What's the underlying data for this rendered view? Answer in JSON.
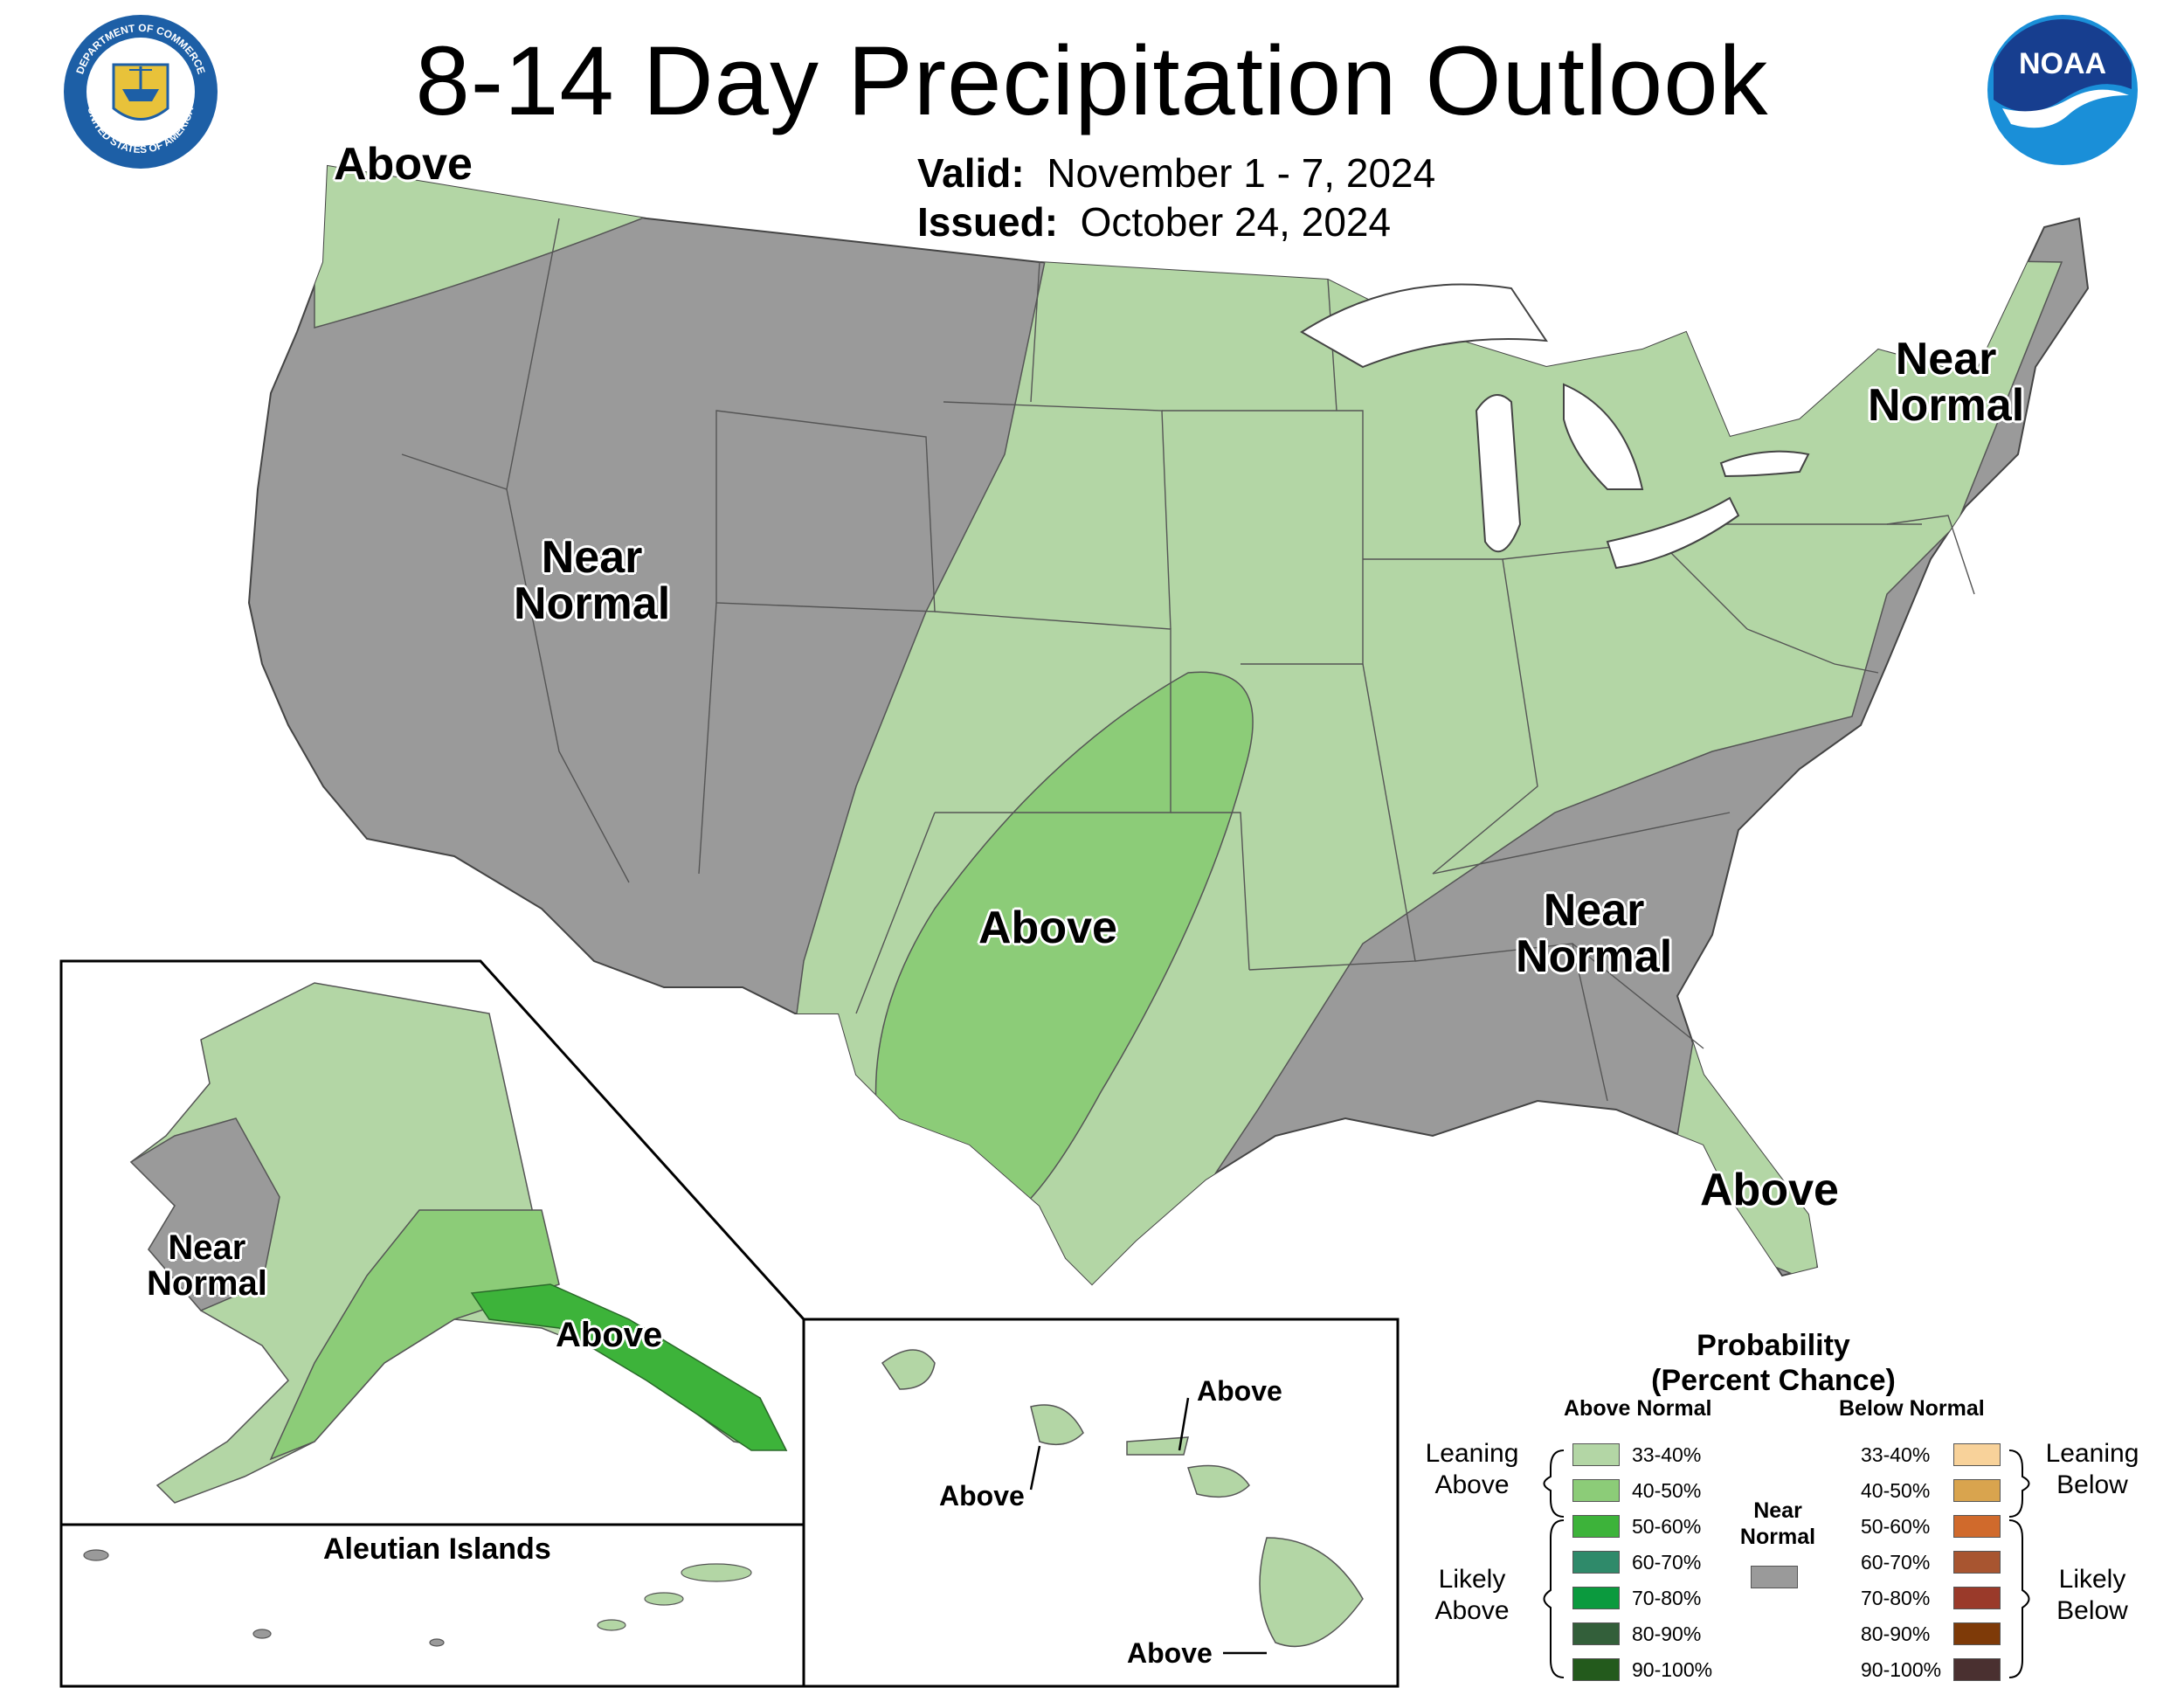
{
  "title": "8-14 Day Precipitation Outlook",
  "valid_label": "Valid:",
  "valid_value": "November 1 - 7, 2024",
  "issued_label": "Issued:",
  "issued_value": "October 24, 2024",
  "logos": {
    "left_name": "department-of-commerce-seal",
    "left_text_top": "DEPARTMENT OF COMMERCE",
    "left_text_bottom": "UNITED STATES OF AMERICA",
    "right_name": "noaa-logo",
    "right_text": "NOAA"
  },
  "regions": {
    "pacific_nw": "Above",
    "west": [
      "Near",
      "Normal"
    ],
    "central_south": "Above",
    "southeast": [
      "Near",
      "Normal"
    ],
    "northeast": [
      "Near",
      "Normal"
    ],
    "florida": "Above",
    "alaska_west": [
      "Near",
      "Normal"
    ],
    "alaska_southeast": "Above",
    "aleutian_title": "Aleutian Islands",
    "hawaii_north": "Above",
    "hawaii_west": "Above",
    "hawaii_south": "Above"
  },
  "legend": {
    "title_line1": "Probability",
    "title_line2": "(Percent Chance)",
    "above_header": "Above Normal",
    "below_header": "Below Normal",
    "near_normal": [
      "Near",
      "Normal"
    ],
    "leaning_above": [
      "Leaning",
      "Above"
    ],
    "likely_above": [
      "Likely",
      "Above"
    ],
    "leaning_below": [
      "Leaning",
      "Below"
    ],
    "likely_below": [
      "Likely",
      "Below"
    ],
    "above": [
      {
        "range": "33-40%",
        "color": "#b3d6a5"
      },
      {
        "range": "40-50%",
        "color": "#8ccc78"
      },
      {
        "range": "50-60%",
        "color": "#3db33a"
      },
      {
        "range": "60-70%",
        "color": "#2f8a6a"
      },
      {
        "range": "70-80%",
        "color": "#0b9a3e"
      },
      {
        "range": "80-90%",
        "color": "#335f3a"
      },
      {
        "range": "90-100%",
        "color": "#235a1c"
      }
    ],
    "below": [
      {
        "range": "33-40%",
        "color": "#f8d29a"
      },
      {
        "range": "40-50%",
        "color": "#d9a44e"
      },
      {
        "range": "50-60%",
        "color": "#d06a2c"
      },
      {
        "range": "60-70%",
        "color": "#a85530"
      },
      {
        "range": "70-80%",
        "color": "#9a3a2a"
      },
      {
        "range": "80-90%",
        "color": "#7e3a08"
      },
      {
        "range": "90-100%",
        "color": "#4a3030"
      }
    ],
    "near_color": "#9a9a9a"
  }
}
